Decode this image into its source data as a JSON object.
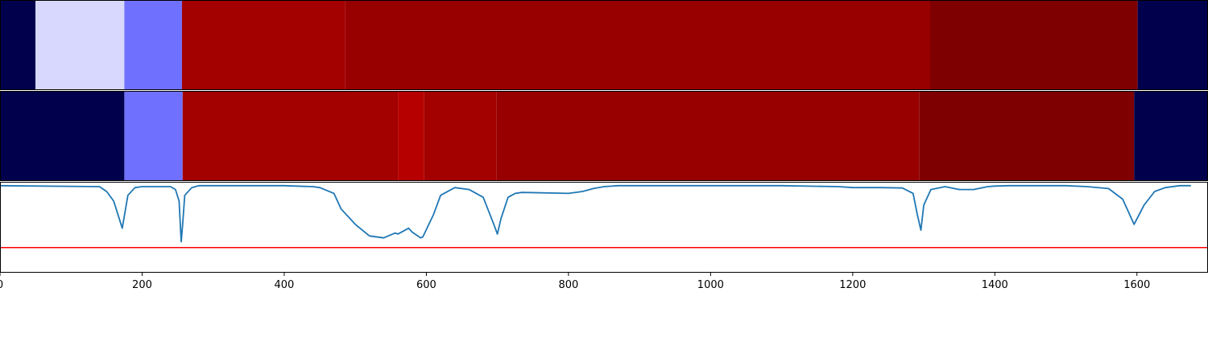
{
  "chart_data": [
    {
      "type": "heatmap",
      "title": "",
      "xlabel": "",
      "ylabel": "",
      "xlim": [
        0,
        1700
      ],
      "segments": [
        {
          "start": 0,
          "end": 50,
          "color": "#00004c"
        },
        {
          "start": 50,
          "end": 175,
          "color": "#d8d8ff"
        },
        {
          "start": 175,
          "end": 256,
          "color": "#7070ff"
        },
        {
          "start": 256,
          "end": 486,
          "color": "#a30000"
        },
        {
          "start": 486,
          "end": 1309,
          "color": "#980000"
        },
        {
          "start": 1309,
          "end": 1601,
          "color": "#7f0000"
        },
        {
          "start": 1601,
          "end": 1700,
          "color": "#00004c"
        }
      ]
    },
    {
      "type": "heatmap",
      "title": "",
      "xlabel": "",
      "ylabel": "",
      "xlim": [
        0,
        1700
      ],
      "segments": [
        {
          "start": 0,
          "end": 175,
          "color": "#00004c"
        },
        {
          "start": 175,
          "end": 257,
          "color": "#7070ff"
        },
        {
          "start": 257,
          "end": 560,
          "color": "#a30000"
        },
        {
          "start": 560,
          "end": 597,
          "color": "#b60000"
        },
        {
          "start": 597,
          "end": 699,
          "color": "#a30000"
        },
        {
          "start": 699,
          "end": 1294,
          "color": "#980000"
        },
        {
          "start": 1294,
          "end": 1596,
          "color": "#7f0000"
        },
        {
          "start": 1596,
          "end": 1700,
          "color": "#00004c"
        }
      ]
    },
    {
      "type": "line",
      "title": "",
      "xlabel": "",
      "ylabel": "",
      "xlim": [
        0,
        1700
      ],
      "ylim": [
        -0.45,
        0.02
      ],
      "xticks": [
        0,
        200,
        400,
        600,
        800,
        1000,
        1200,
        1400,
        1600
      ],
      "xtick_labels": [
        "0",
        "200",
        "400",
        "600",
        "800",
        "1000",
        "1200",
        "1400",
        "1600"
      ],
      "threshold": 0.32,
      "series": [
        {
          "color": "#1f77b4",
          "x": [
            0,
            140,
            150,
            160,
            172,
            180,
            190,
            200,
            240,
            247,
            252,
            255,
            257,
            260,
            270,
            280,
            300,
            350,
            400,
            440,
            450,
            470,
            480,
            500,
            520,
            540,
            556,
            560,
            575,
            580,
            592,
            595,
            597,
            610,
            620,
            640,
            660,
            680,
            695,
            700,
            705,
            715,
            725,
            735,
            800,
            820,
            835,
            850,
            870,
            900,
            1000,
            1100,
            1180,
            1200,
            1220,
            1240,
            1270,
            1285,
            1291,
            1296,
            1300,
            1310,
            1330,
            1350,
            1370,
            1390,
            1400,
            1420,
            1450,
            1500,
            1530,
            1560,
            1580,
            1596,
            1610,
            1625,
            1640,
            1660,
            1676
          ],
          "y": [
            0,
            -0.005,
            -0.03,
            -0.08,
            -0.22,
            -0.05,
            -0.01,
            -0.005,
            -0.005,
            -0.02,
            -0.08,
            -0.29,
            -0.2,
            -0.05,
            -0.01,
            0,
            0,
            0,
            0,
            -0.005,
            -0.01,
            -0.04,
            -0.12,
            -0.2,
            -0.26,
            -0.27,
            -0.245,
            -0.25,
            -0.22,
            -0.24,
            -0.27,
            -0.265,
            -0.25,
            -0.15,
            -0.05,
            -0.01,
            -0.02,
            -0.06,
            -0.2,
            -0.25,
            -0.17,
            -0.06,
            -0.04,
            -0.035,
            -0.04,
            -0.03,
            -0.015,
            -0.005,
            0,
            0,
            0,
            0,
            -0.005,
            -0.01,
            -0.01,
            -0.01,
            -0.012,
            -0.04,
            -0.15,
            -0.23,
            -0.1,
            -0.02,
            -0.005,
            -0.02,
            -0.02,
            -0.005,
            -0.002,
            0,
            0,
            0,
            -0.005,
            -0.015,
            -0.07,
            -0.2,
            -0.1,
            -0.03,
            -0.01,
            0,
            0
          ]
        }
      ]
    }
  ]
}
